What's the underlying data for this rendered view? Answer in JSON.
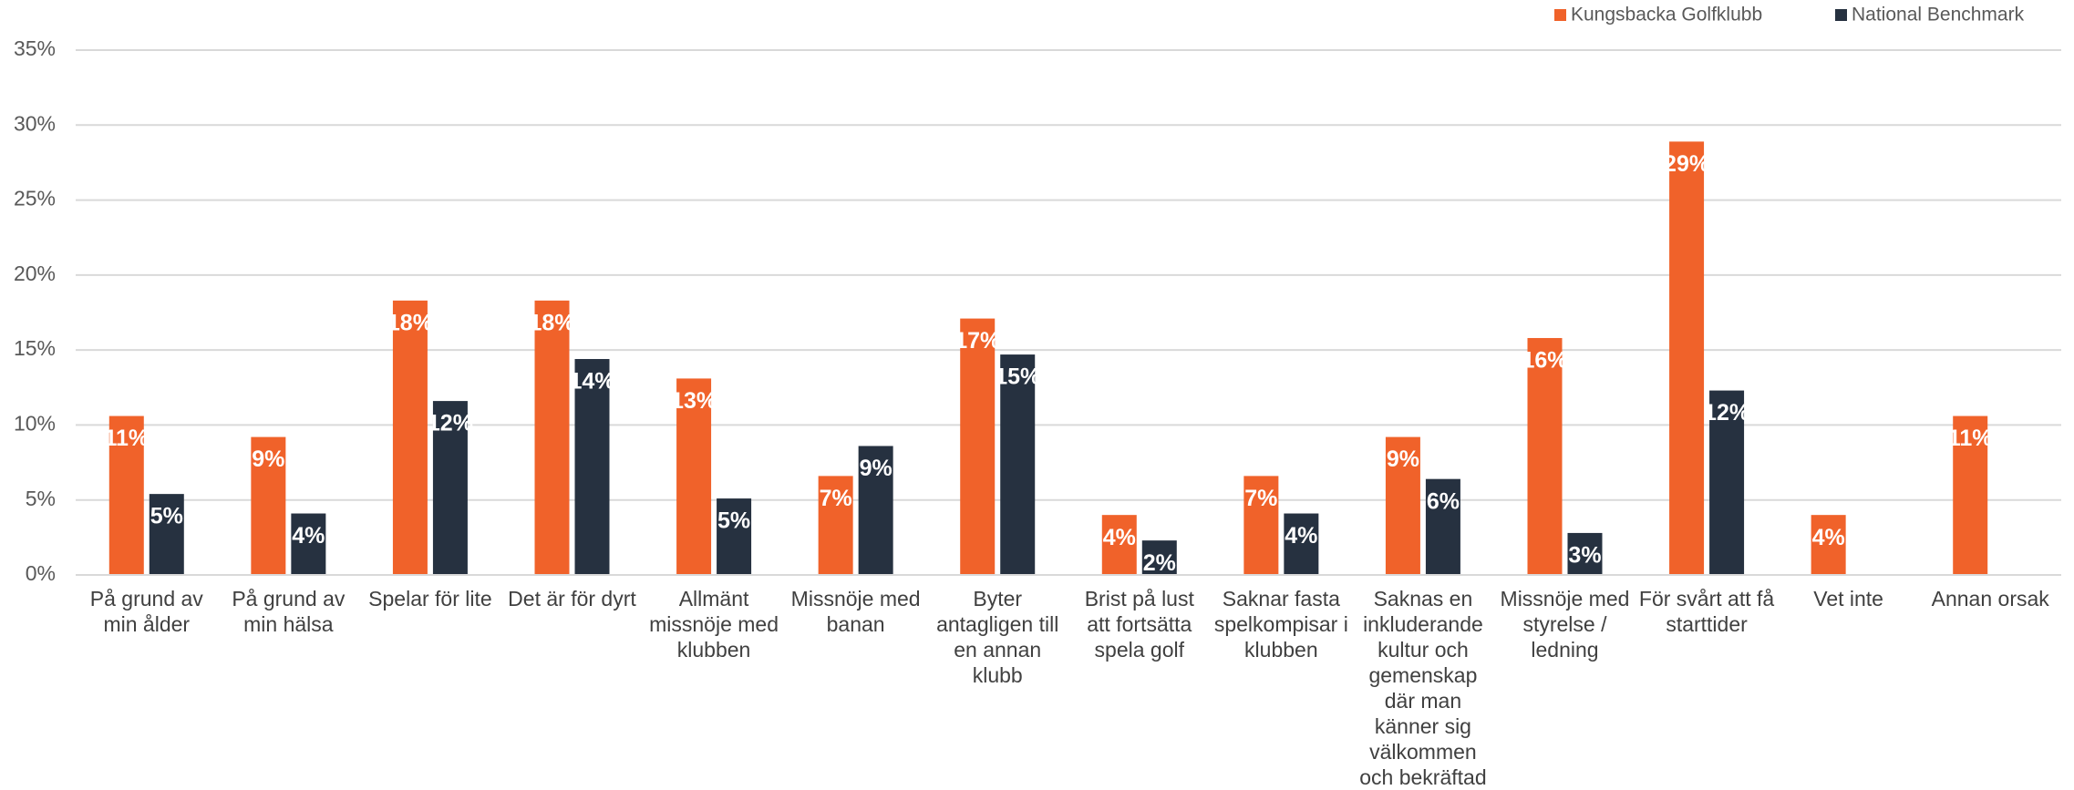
{
  "chart_data": {
    "type": "bar",
    "categories": [
      "På grund av min ålder",
      "På grund av min hälsa",
      "Spelar för lite",
      "Det är för dyrt",
      "Allmänt missnöje med klubben",
      "Missnöje med banan",
      "Byter antagligen till en annan klubb",
      "Brist på lust att fortsätta spela golf",
      "Saknar fasta spelkompisar i klubben",
      "Saknas en inkluderande kultur och gemenskap där man känner sig välkommen och bekräftad",
      "Missnöje med styrelse / ledning",
      "För svårt att få starttider",
      "Vet inte",
      "Annan orsak"
    ],
    "series": [
      {
        "name": "Kungsbacka Golfklubb",
        "color": "#f0622a",
        "values": [
          10.6,
          9.2,
          18.3,
          18.3,
          13.1,
          6.6,
          17.1,
          4.0,
          6.6,
          9.2,
          15.8,
          28.9,
          4.0,
          10.6
        ],
        "value_labels": [
          "11%",
          "9%",
          "18%",
          "18%",
          "13%",
          "7%",
          "17%",
          "4%",
          "7%",
          "9%",
          "16%",
          "29%",
          "4%",
          "11%"
        ]
      },
      {
        "name": "National Benchmark",
        "color": "#263140",
        "values": [
          5.4,
          4.1,
          11.6,
          14.4,
          5.1,
          8.6,
          14.7,
          2.3,
          4.1,
          6.4,
          2.8,
          12.3,
          null,
          null
        ],
        "value_labels": [
          "5%",
          "4%",
          "12%",
          "14%",
          "5%",
          "9%",
          "15%",
          "2%",
          "4%",
          "6%",
          "3%",
          "12%",
          null,
          null
        ]
      }
    ],
    "ylim": [
      0,
      35
    ],
    "yticks": [
      {
        "value": 0,
        "label": "0%"
      },
      {
        "value": 5,
        "label": "5%"
      },
      {
        "value": 10,
        "label": "10%"
      },
      {
        "value": 15,
        "label": "15%"
      },
      {
        "value": 20,
        "label": "20%"
      },
      {
        "value": 25,
        "label": "25%"
      },
      {
        "value": 30,
        "label": "30%"
      },
      {
        "value": 35,
        "label": "35%"
      }
    ],
    "grid": true,
    "legend": "top-right"
  }
}
